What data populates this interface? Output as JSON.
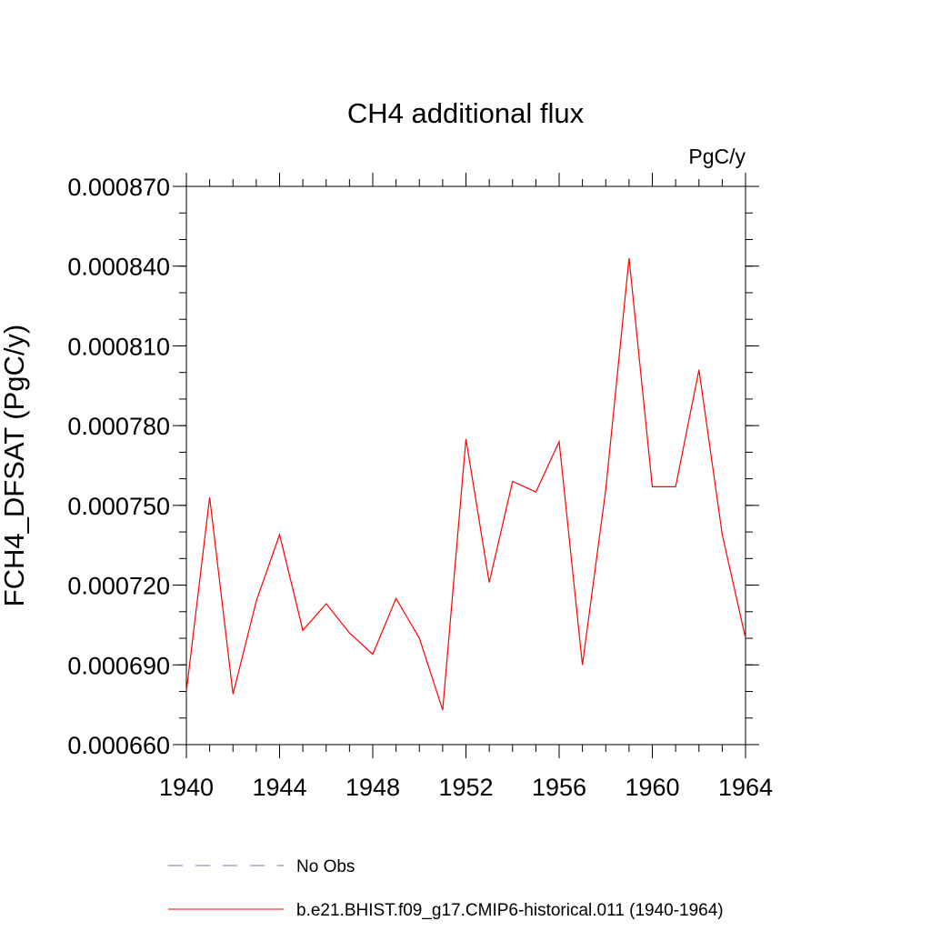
{
  "chart_data": {
    "type": "line",
    "title": "CH4 additional flux",
    "units_label": "PgC/y",
    "ylabel": "FCH4_DFSAT  (PgC/y)",
    "xlabel": "",
    "xlim": [
      1940,
      1964
    ],
    "ylim": [
      0.00066,
      0.00087
    ],
    "x_ticks": [
      1940,
      1944,
      1948,
      1952,
      1956,
      1960,
      1964
    ],
    "x_tick_labels": [
      "1940",
      "1944",
      "1948",
      "1952",
      "1956",
      "1960",
      "1964"
    ],
    "y_ticks": [
      0.00066,
      0.00069,
      0.00072,
      0.00075,
      0.00078,
      0.00081,
      0.00084,
      0.00087
    ],
    "y_tick_labels": [
      "0.000660",
      "0.000690",
      "0.000720",
      "0.000750",
      "0.000780",
      "0.000810",
      "0.000840",
      "0.000870"
    ],
    "x_minor_step": 1,
    "y_minor_step": 1e-05,
    "grid": false,
    "legend_position": "bottom",
    "series": [
      {
        "name": "b.e21.BHIST.f09_g17.CMIP6-historical.011 (1940-1964)",
        "color": "#ff0000",
        "style": "solid",
        "x": [
          1940,
          1941,
          1942,
          1943,
          1944,
          1945,
          1946,
          1947,
          1948,
          1949,
          1950,
          1951,
          1952,
          1953,
          1954,
          1955,
          1956,
          1957,
          1958,
          1959,
          1960,
          1961,
          1962,
          1963,
          1964
        ],
        "values": [
          0.00068,
          0.000753,
          0.000679,
          0.000714,
          0.000739,
          0.000703,
          0.000713,
          0.000702,
          0.000694,
          0.000715,
          0.0007,
          0.000673,
          0.000775,
          0.000721,
          0.000759,
          0.000755,
          0.000774,
          0.00069,
          0.000756,
          0.000843,
          0.000757,
          0.000757,
          0.000801,
          0.000739,
          0.0007
        ]
      }
    ],
    "legend": [
      {
        "label": "No Obs",
        "color": "#7777bb",
        "style": "dashed"
      },
      {
        "label": "b.e21.BHIST.f09_g17.CMIP6-historical.011 (1940-1964)",
        "color": "#ff0000",
        "style": "solid"
      }
    ]
  }
}
